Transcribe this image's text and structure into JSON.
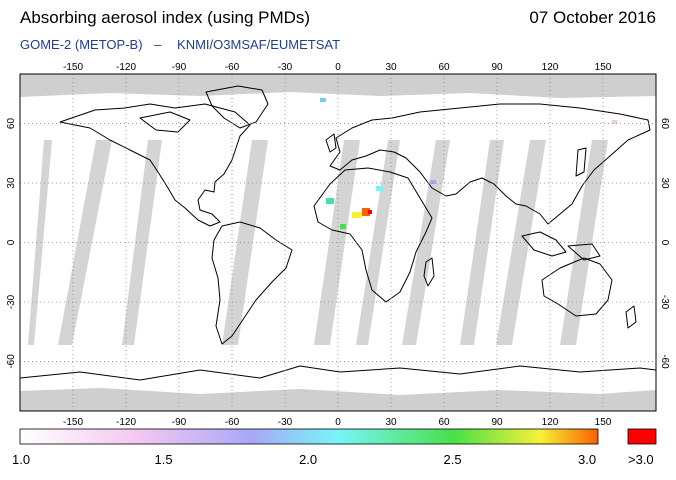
{
  "header": {
    "title": "Absorbing aerosol index (using PMDs)",
    "date": "07 October 2016",
    "instrument": "GOME-2 (METOP-B)",
    "separator": "–",
    "source": "KNMI/O3MSAF/EUMETSAT"
  },
  "map": {
    "projection": "equirectangular",
    "lon_ticks": [
      "-150",
      "-120",
      "-90",
      "-60",
      "-30",
      "0",
      "30",
      "60",
      "90",
      "120",
      "150"
    ],
    "lat_ticks": [
      "60",
      "30",
      "0",
      "-30",
      "-60"
    ],
    "colors": {
      "background": "#ffffff",
      "swath_gap": "#d4d4d4",
      "polar_gap": "#cfcfcf",
      "coast": "#000000",
      "graticule": "#888888"
    }
  },
  "colorbar": {
    "tick_labels": [
      "1.0",
      "1.5",
      "2.0",
      "2.5",
      "3.0"
    ],
    "overflow_label": ">3.0",
    "overflow_color": "#ff0000",
    "gradient": [
      "#ffffff",
      "#f4c8f0",
      "#a8a8f8",
      "#78f4f8",
      "#48e048",
      "#f8f038",
      "#f86000"
    ]
  }
}
